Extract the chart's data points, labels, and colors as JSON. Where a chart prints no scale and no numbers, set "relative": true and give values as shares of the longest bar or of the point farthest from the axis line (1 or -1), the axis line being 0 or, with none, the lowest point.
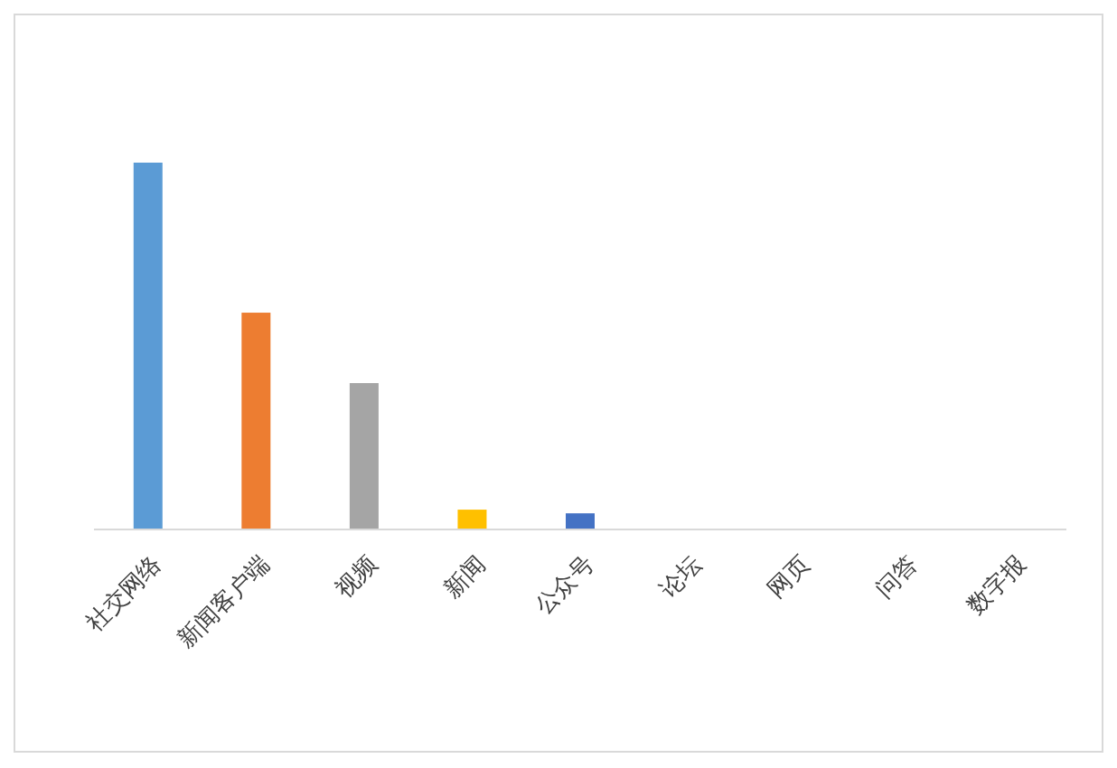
{
  "chart_data": {
    "type": "bar",
    "relative": true,
    "categories": [
      "社交网络",
      "新闻客户端",
      "视频",
      "新闻",
      "公众号",
      "论坛",
      "网页",
      "问答",
      "数字报"
    ],
    "values": [
      1,
      0.591,
      0.399,
      0.054,
      0.044,
      0,
      0,
      0,
      0
    ],
    "colors": [
      "#5b9bd5",
      "#ed7d31",
      "#a5a5a5",
      "#ffc000",
      "#4472c4",
      "#70ad47",
      "#255e91",
      "#9e480e",
      "#636363"
    ]
  }
}
